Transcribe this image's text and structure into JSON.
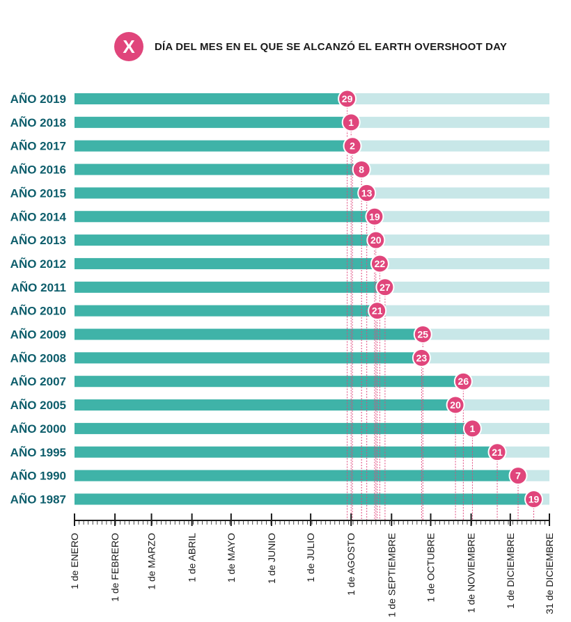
{
  "legend": {
    "marker": "X",
    "text": "DÍA DEL MES EN EL QUE SE ALCANZÓ EL EARTH OVERSHOOT DAY"
  },
  "colors": {
    "bar": "#3fb3a8",
    "track": "#c8e7e8",
    "marker": "#e0457b",
    "label": "#0d5d6b",
    "axis": "#1a1a1a"
  },
  "chart_data": {
    "type": "bar",
    "orientation": "horizontal",
    "categories": [
      "AÑO 2019",
      "AÑO 2018",
      "AÑO 2017",
      "AÑO 2016",
      "AÑO 2015",
      "AÑO 2014",
      "AÑO 2013",
      "AÑO 2012",
      "AÑO 2011",
      "AÑO 2010",
      "AÑO 2009",
      "AÑO 2008",
      "AÑO 2007",
      "AÑO 2005",
      "AÑO 2000",
      "AÑO 1995",
      "AÑO 1990",
      "AÑO 1987"
    ],
    "series": [
      {
        "values": [
          "2019-07-29",
          "2018-08-01",
          "2017-08-02",
          "2016-08-08",
          "2015-08-13",
          "2014-08-19",
          "2013-08-20",
          "2012-08-22",
          "2011-08-27",
          "2010-08-21",
          "2009-09-25",
          "2008-09-23",
          "2007-10-26",
          "2005-10-20",
          "2000-11-01",
          "1995-11-21",
          "1990-12-07",
          "1987-12-19"
        ],
        "day_labels": [
          "29",
          "1",
          "2",
          "8",
          "13",
          "19",
          "20",
          "22",
          "27",
          "21",
          "25",
          "23",
          "26",
          "20",
          "1",
          "21",
          "7",
          "19"
        ]
      }
    ],
    "x_ticks": [
      "1 de ENERO",
      "1 de  FEBRERO",
      "1 de MARZO",
      "1 de ABRIL",
      "1 de MAYO",
      "1 de JUNIO",
      "1 de JULIO",
      "1 de AGOSTO",
      "1 de SEPTIEMBRE",
      "1 de OCTUBRE",
      "1 de NOVIEMBRE",
      "1 de DICIEMBRE",
      "31 de DICIEMBRE"
    ],
    "xlim": [
      "01-01",
      "12-31"
    ],
    "grid": false,
    "legend": "top"
  }
}
